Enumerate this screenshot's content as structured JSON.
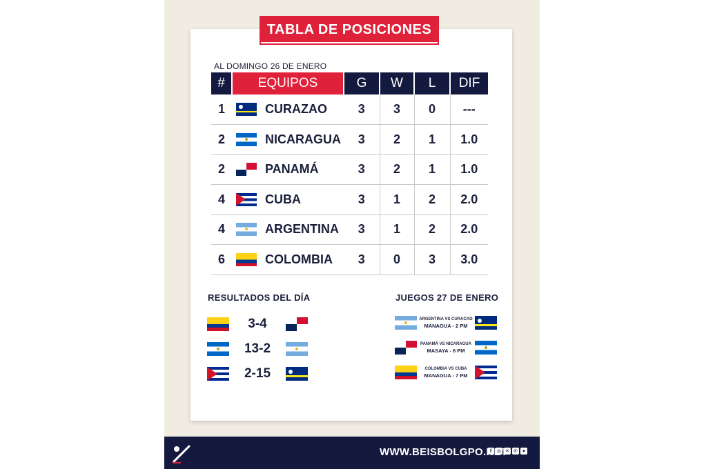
{
  "header": {
    "title": "TABLA DE POSICIONES",
    "as_of": "AL DOMINGO 26 DE ENERO"
  },
  "standings": {
    "columns": [
      "#",
      "EQUIPOS",
      "G",
      "W",
      "L",
      "DIF"
    ],
    "rows": [
      {
        "rank": "1",
        "team": "CURAZAO",
        "flag": "curazao",
        "g": "3",
        "w": "3",
        "l": "0",
        "dif": "---"
      },
      {
        "rank": "2",
        "team": "NICARAGUA",
        "flag": "nicaragua",
        "g": "3",
        "w": "2",
        "l": "1",
        "dif": "1.0"
      },
      {
        "rank": "2",
        "team": "PANAMÁ",
        "flag": "panama",
        "g": "3",
        "w": "2",
        "l": "1",
        "dif": "1.0"
      },
      {
        "rank": "4",
        "team": "CUBA",
        "flag": "cuba",
        "g": "3",
        "w": "1",
        "l": "2",
        "dif": "2.0"
      },
      {
        "rank": "4",
        "team": "ARGENTINA",
        "flag": "argentina",
        "g": "3",
        "w": "1",
        "l": "2",
        "dif": "2.0"
      },
      {
        "rank": "6",
        "team": "COLOMBIA",
        "flag": "colombia",
        "g": "3",
        "w": "0",
        "l": "3",
        "dif": "3.0"
      }
    ]
  },
  "results": {
    "title": "RESULTADOS DEL DÍA",
    "items": [
      {
        "home_flag": "colombia",
        "score": "3-4",
        "away_flag": "panama"
      },
      {
        "home_flag": "nicaragua",
        "score": "13-2",
        "away_flag": "argentina"
      },
      {
        "home_flag": "cuba",
        "score": "2-15",
        "away_flag": "curazao"
      }
    ]
  },
  "games": {
    "title": "JUEGOS 27 DE ENERO",
    "items": [
      {
        "left_flag": "argentina",
        "match": "ARGENTINA VS CURACAO",
        "venue": "MANAGUA - 2 PM",
        "right_flag": "curazao"
      },
      {
        "left_flag": "panama",
        "match": "PANAMÁ VS NICARAGUA",
        "venue": "MASAYA - 6 PM",
        "right_flag": "nicaragua"
      },
      {
        "left_flag": "colombia",
        "match": "COLOMBIA VS CUBA",
        "venue": "MANAGUA - 7 PM",
        "right_flag": "cuba"
      }
    ]
  },
  "footer": {
    "site": "WWW.BEISBOLGPO.NET",
    "social_icons": [
      "facebook-icon",
      "instagram-icon",
      "x-icon",
      "whatsapp-icon",
      "telegram-icon"
    ]
  },
  "colors": {
    "navy": "#141a3f",
    "red": "#e0213a",
    "background": "#f1ece2"
  }
}
